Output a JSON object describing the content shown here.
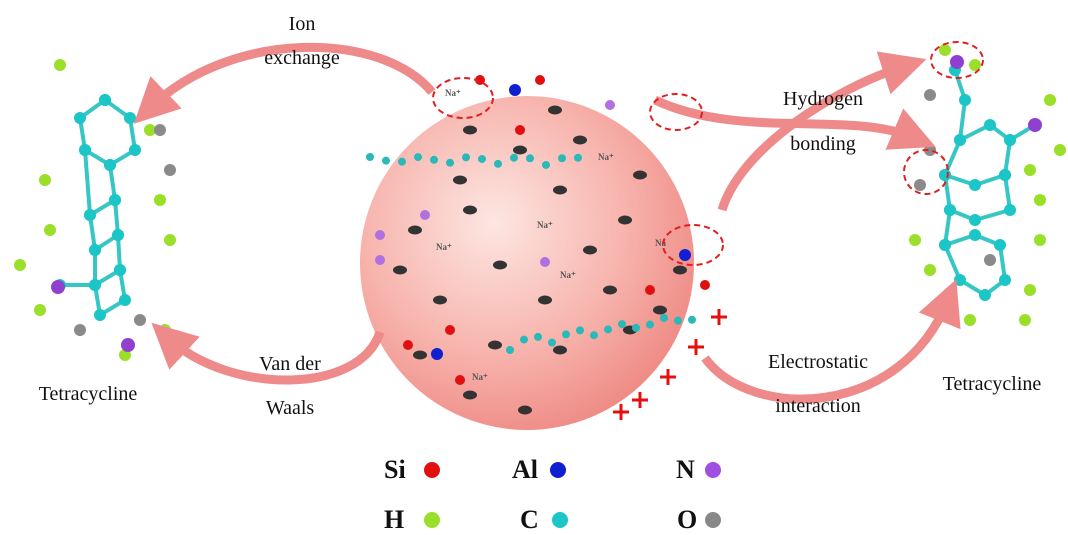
{
  "labels": {
    "ion_exchange": [
      "Ion",
      "exchange"
    ],
    "hydrogen_bonding": [
      "Hydrogen",
      "bonding"
    ],
    "van_der_waals": [
      "Van der",
      "Waals"
    ],
    "electrostatic": [
      "Electrostatic",
      "interaction"
    ],
    "left_molecule": "Tetracycline",
    "right_molecule": "Tetracycline"
  },
  "sphere_labels": [
    "Na⁺",
    "Na⁺",
    "Na⁺",
    "Na⁺",
    "Na⁺",
    "Na",
    "Na⁺"
  ],
  "legend": [
    {
      "label": "Si"
    },
    {
      "label": "Al"
    },
    {
      "label": "N"
    },
    {
      "label": "H"
    },
    {
      "label": "C"
    },
    {
      "label": "O"
    }
  ]
}
